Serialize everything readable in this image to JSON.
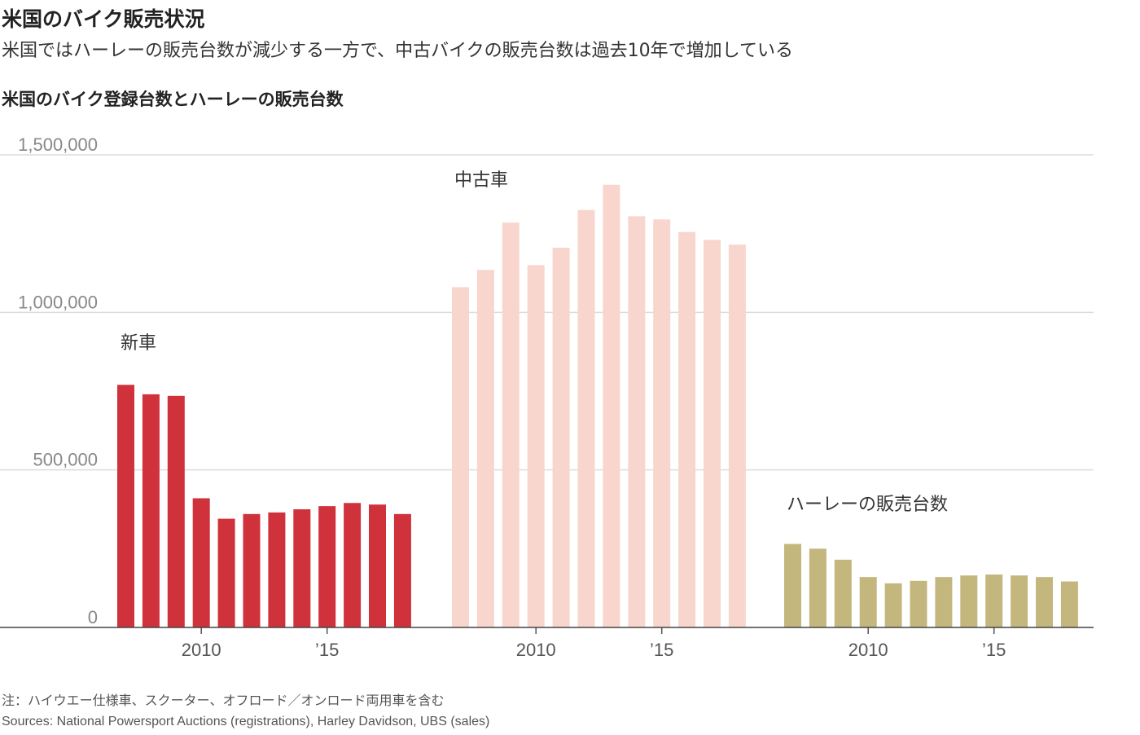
{
  "header": {
    "title": "米国のバイク販売状況",
    "subtitle": "米国ではハーレーの販売台数が減少する一方で、中古バイクの販売台数は過去10年で増加している",
    "chart_title": "米国のバイク登録台数とハーレーの販売台数"
  },
  "footer": {
    "note": "注：ハイウエー仕様車、スクーター、オフロード／オンロード両用車を含む",
    "sources": "Sources: National Powersport Auctions (registrations), Harley Davidson, UBS (sales)"
  },
  "chart_data": {
    "type": "bar",
    "title": "米国のバイク登録台数とハーレーの販売台数",
    "xlabel": "",
    "ylabel": "",
    "ylim": [
      0,
      1500000
    ],
    "y_ticks": [
      0,
      500000,
      1000000,
      1500000
    ],
    "y_tick_labels": [
      "0",
      "500,000",
      "1,000,000",
      "1,500,000"
    ],
    "grid": true,
    "x": [
      2007,
      2008,
      2009,
      2010,
      2011,
      2012,
      2013,
      2014,
      2015,
      2016,
      2017,
      2018
    ],
    "x_tick_labels": [
      {
        "year": 2010,
        "label": "2010"
      },
      {
        "year": 2015,
        "label": "’15"
      }
    ],
    "series": [
      {
        "name": "新車",
        "color": "#d0323c",
        "values": [
          770000,
          740000,
          735000,
          410000,
          345000,
          360000,
          365000,
          375000,
          385000,
          395000,
          390000,
          360000
        ]
      },
      {
        "name": "中古車",
        "color": "#f9d6cd",
        "values": [
          1080000,
          1135000,
          1285000,
          1150000,
          1205000,
          1325000,
          1405000,
          1305000,
          1295000,
          1255000,
          1230000,
          1215000
        ]
      },
      {
        "name": "ハーレーの販売台数",
        "color": "#c4b77e",
        "values": [
          265000,
          250000,
          215000,
          160000,
          140000,
          148000,
          160000,
          165000,
          168000,
          165000,
          160000,
          146000
        ]
      }
    ]
  }
}
